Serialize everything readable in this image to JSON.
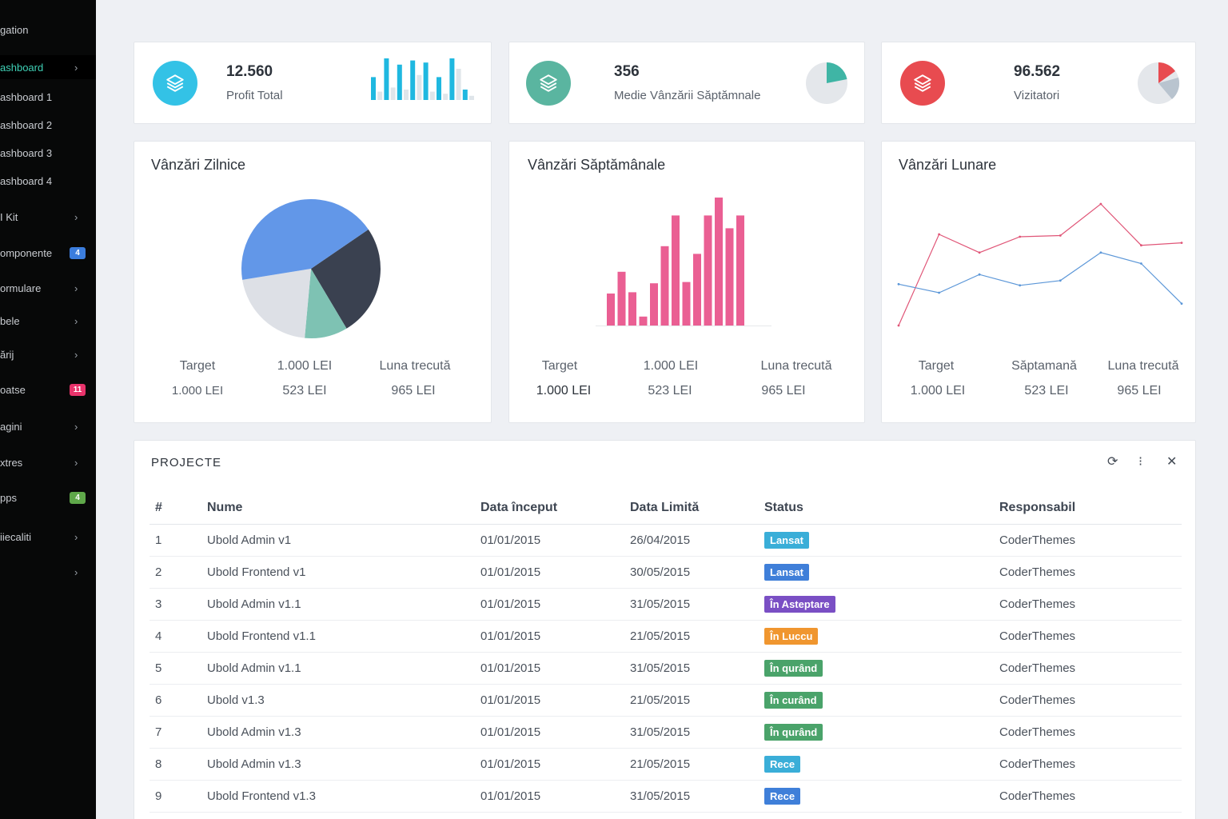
{
  "sidebar": {
    "heading": "gation",
    "items": [
      {
        "label": "ashboard",
        "chevron": "›",
        "active": true
      },
      {
        "label": "ashboard 1"
      },
      {
        "label": "ashboard 2"
      },
      {
        "label": "ashboard 3"
      },
      {
        "label": "ashboard 4"
      },
      {
        "label": "I Kit",
        "chevron": "›"
      },
      {
        "label": "omponente",
        "badge": "4",
        "badge_color": "#3b7ddd"
      },
      {
        "label": "ormulare",
        "chevron": "›"
      },
      {
        "label": "bele",
        "chevron": "›"
      },
      {
        "label": "ărij",
        "chevron": "›"
      },
      {
        "label": "oatse",
        "badge": "11",
        "badge_color": "#e8336b"
      },
      {
        "label": "agini",
        "chevron": "›"
      },
      {
        "label": "xtres",
        "chevron": "›"
      },
      {
        "label": "pps",
        "badge": "4",
        "badge_color": "#5fa84a"
      },
      {
        "label": "iiecaliti",
        "chevron": "›"
      },
      {
        "label": "",
        "chevron": "›"
      }
    ]
  },
  "stats": [
    {
      "value": "12.560",
      "label": "Profit Total",
      "icon": "layers-icon",
      "color": "#33c2e6"
    },
    {
      "value": "356",
      "label": "Medie Vânzării Săptămnale",
      "icon": "layers-icon",
      "color": "#5ab5a0"
    },
    {
      "value": "96.562",
      "label": "Vizitatori",
      "icon": "layers-icon",
      "color": "#e84b50"
    }
  ],
  "sparkline_bars": [
    0.55,
    0.2,
    1.0,
    0.3,
    0.85,
    0.25,
    0.95,
    0.6,
    0.9,
    0.2,
    0.55,
    0.15,
    1.0,
    0.75,
    0.25,
    0.1
  ],
  "panels": [
    {
      "title": "Vânzări Zilnice",
      "labels": [
        "Target",
        "1.000 LEI",
        "Luna trecută"
      ],
      "values": [
        "1.000 LEI",
        "523 LEI",
        "965 LEI"
      ]
    },
    {
      "title": "Vânzări Săptămânale",
      "labels": [
        "Target",
        "1.000 LEI",
        "Luna trecută"
      ],
      "values": [
        "1.000 LEI",
        "523 LEI",
        "965 LEI"
      ]
    },
    {
      "title": "Vânzări Lunare",
      "labels": [
        "Target",
        "Săptamană",
        "Luna trecută"
      ],
      "values": [
        "1.000 LEI",
        "523 LEI",
        "965 LEI"
      ]
    }
  ],
  "chart_data": [
    {
      "type": "pie",
      "slices": [
        {
          "value": 26,
          "color": "#3a4150"
        },
        {
          "value": 10,
          "color": "#7ec2b3"
        },
        {
          "value": 21,
          "color": "#dde0e6"
        },
        {
          "value": 43,
          "color": "#6297e8"
        }
      ]
    },
    {
      "type": "bar",
      "values": [
        25,
        42,
        26,
        7,
        33,
        62,
        86,
        34,
        56,
        86,
        100,
        76,
        86
      ],
      "color": "#ea5f93",
      "ylim": [
        0,
        100
      ]
    },
    {
      "type": "line",
      "x": [
        0,
        1,
        2,
        3,
        4,
        5,
        6,
        7
      ],
      "series": [
        {
          "values": [
            0,
            75,
            60,
            73,
            74,
            100,
            66,
            68
          ],
          "color": "#e05577"
        },
        {
          "values": [
            34,
            27,
            42,
            33,
            37,
            60,
            51,
            18
          ],
          "color": "#5c97d8"
        }
      ],
      "ylim": [
        0,
        100
      ]
    }
  ],
  "table": {
    "title": "PROJECTE",
    "columns": [
      "#",
      "Nume",
      "Data început",
      "Data Limită",
      "Status",
      "Responsabil"
    ],
    "rows": [
      {
        "n": "1",
        "name": "Ubold Admin v1",
        "start": "01/01/2015",
        "end": "26/04/2015",
        "status": "Lansat",
        "status_color": "#3aaed8",
        "owner": "CoderThemes"
      },
      {
        "n": "2",
        "name": "Ubold Frontend v1",
        "start": "01/01/2015",
        "end": "30/05/2015",
        "status": "Lansat",
        "status_color": "#3f7fd9",
        "owner": "CoderThemes"
      },
      {
        "n": "3",
        "name": "Ubold Admin v1.1",
        "start": "01/01/2015",
        "end": "31/05/2015",
        "status": "În Asteptare",
        "status_color": "#7a4fc4",
        "owner": "CoderThemes"
      },
      {
        "n": "4",
        "name": "Ubold Frontend v1.1",
        "start": "01/01/2015",
        "end": "21/05/2015",
        "status": "În Luccu",
        "status_color": "#f0962f",
        "owner": "CoderThemes"
      },
      {
        "n": "5",
        "name": "Ubold Admin v1.1",
        "start": "01/01/2015",
        "end": "31/05/2015",
        "status": "În qurând",
        "status_color": "#4aa36a",
        "owner": "CoderThemes"
      },
      {
        "n": "6",
        "name": "Ubold v1.3",
        "start": "01/01/2015",
        "end": "21/05/2015",
        "status": "În curând",
        "status_color": "#4aa36a",
        "owner": "CoderThemes"
      },
      {
        "n": "7",
        "name": "Ubold Admin v1.3",
        "start": "01/01/2015",
        "end": "31/05/2015",
        "status": "În qurând",
        "status_color": "#4aa36a",
        "owner": "CoderThemes"
      },
      {
        "n": "8",
        "name": "Ubold Admin v1.3",
        "start": "01/01/2015",
        "end": "21/05/2015",
        "status": "Rece",
        "status_color": "#3aaed8",
        "owner": "CoderThemes"
      },
      {
        "n": "9",
        "name": "Ubold Frontend v1.3",
        "start": "01/01/2015",
        "end": "31/05/2015",
        "status": "Rece",
        "status_color": "#3f7fd9",
        "owner": "CoderThemes"
      }
    ],
    "tools": {
      "refresh": "⟳",
      "more": "⁝",
      "close": "✕"
    }
  }
}
